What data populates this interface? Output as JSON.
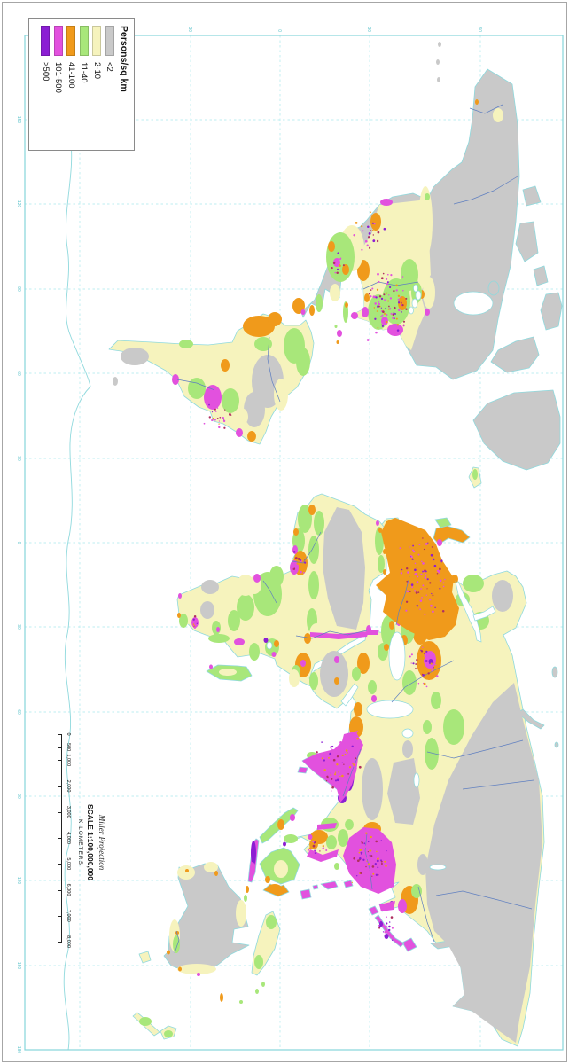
{
  "legend": {
    "title": "Persons/sq km",
    "items": [
      {
        "label": "<2",
        "color": "#c9c9c9"
      },
      {
        "label": "2-10",
        "color": "#f6f3bd"
      },
      {
        "label": "11-40",
        "color": "#a8e77a"
      },
      {
        "label": "41-100",
        "color": "#f09a1b"
      },
      {
        "label": "101-500",
        "color": "#e251de"
      },
      {
        "label": ">500",
        "color": "#8b1ed3"
      }
    ]
  },
  "scale_bar": {
    "projection": "Miller Projection",
    "scale_text": "SCALE 1:100,000,000",
    "unit_label": "KILOMETERS",
    "tick_labels": [
      "0",
      "500",
      "1,000",
      "2,000",
      "3,000",
      "4,000",
      "5,000",
      "6,000",
      "7,000",
      "8,000"
    ],
    "tick_values": [
      0,
      500,
      1000,
      2000,
      3000,
      4000,
      5000,
      6000,
      7000,
      8000
    ],
    "max_km": 8000
  },
  "graticule": {
    "lon_labels": [
      "150",
      "120",
      "90",
      "60",
      "30",
      "0",
      "30",
      "60",
      "90",
      "120",
      "150",
      "180"
    ],
    "lat_labels": [
      "60",
      "30",
      "0",
      "30",
      "60"
    ],
    "interval_degrees": 30
  },
  "map": {
    "ocean_color": "#ffffff",
    "coast_color": "#8fd9dd",
    "grid_color": "#bdeef0",
    "frame_color": "#86d6da",
    "river_color": "#5f7fc0",
    "border_color": "#a9a99a",
    "label_color": "#5fc4cc"
  }
}
